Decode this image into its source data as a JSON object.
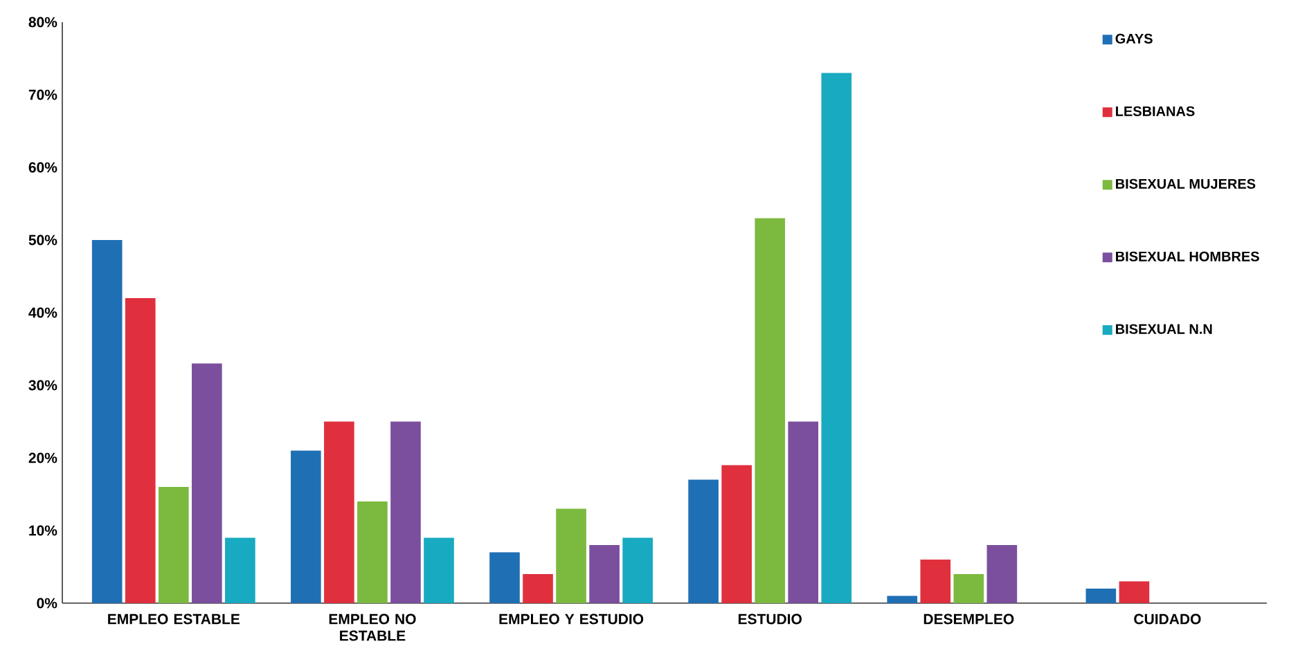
{
  "chart_data": {
    "type": "bar",
    "categories": [
      "EMPLEO ESTABLE",
      "EMPLEO NO ESTABLE",
      "EMPLEO Y ESTUDIO",
      "ESTUDIO",
      "DESEMPLEO",
      "CUIDADO"
    ],
    "series": [
      {
        "name": "GAYS",
        "color": "#1f6fb5",
        "values": [
          50,
          21,
          7,
          17,
          1,
          2
        ]
      },
      {
        "name": "LESBIANAS",
        "color": "#e0303e",
        "values": [
          42,
          25,
          4,
          19,
          6,
          3
        ]
      },
      {
        "name": "BISEXUAL MUJERES",
        "color": "#7cba3f",
        "values": [
          16,
          14,
          13,
          53,
          4,
          0
        ]
      },
      {
        "name": "BISEXUAL HOMBRES",
        "color": "#7b4f9e",
        "values": [
          33,
          25,
          8,
          25,
          8,
          0
        ]
      },
      {
        "name": "BISEXUAL N.N",
        "color": "#18aac0",
        "values": [
          9,
          9,
          9,
          73,
          0,
          0
        ]
      }
    ],
    "ylim": [
      0,
      80
    ],
    "yticks": [
      {
        "value": 0,
        "label": "0%"
      },
      {
        "value": 10,
        "label": "10%"
      },
      {
        "value": 20,
        "label": "20%"
      },
      {
        "value": 30,
        "label": "30%"
      },
      {
        "value": 40,
        "label": "40%"
      },
      {
        "value": 50,
        "label": "50%"
      },
      {
        "value": 60,
        "label": "60%"
      },
      {
        "value": 70,
        "label": "70%"
      },
      {
        "value": 80,
        "label": "80%"
      }
    ],
    "grid": false,
    "legend": "top right"
  }
}
